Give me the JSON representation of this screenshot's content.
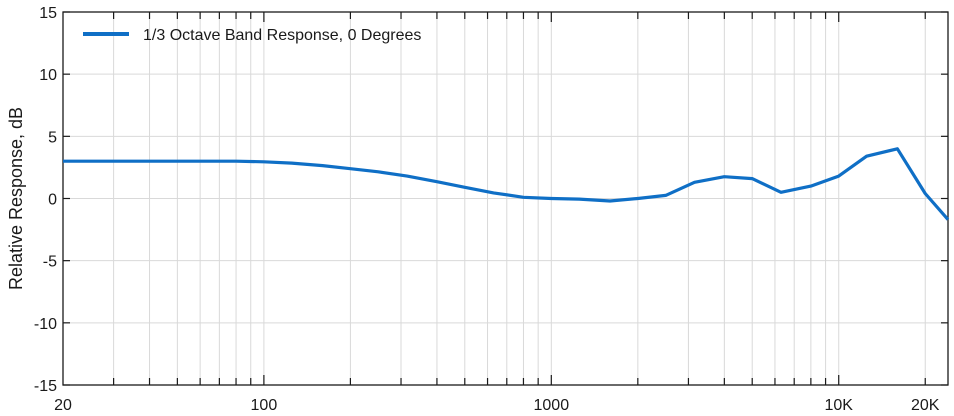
{
  "chart_data": {
    "type": "line",
    "title": "",
    "xlabel": "",
    "ylabel": "Relative Response, dB",
    "xscale": "log",
    "xlim": [
      20,
      24000
    ],
    "ylim": [
      -15,
      15
    ],
    "grid": true,
    "legend_position": "top-left",
    "x_ticks": [
      {
        "value": 20,
        "label": "20"
      },
      {
        "value": 100,
        "label": "100"
      },
      {
        "value": 1000,
        "label": "1000"
      },
      {
        "value": 10000,
        "label": "10K"
      },
      {
        "value": 20000,
        "label": "20K"
      }
    ],
    "y_ticks": [
      {
        "value": 15,
        "label": "15"
      },
      {
        "value": 10,
        "label": "10"
      },
      {
        "value": 5,
        "label": "5"
      },
      {
        "value": 0,
        "label": "0"
      },
      {
        "value": -5,
        "label": "-5"
      },
      {
        "value": -10,
        "label": "-10"
      },
      {
        "value": -15,
        "label": "-15"
      }
    ],
    "series": [
      {
        "name": "1/3 Octave Band Response, 0 Degrees",
        "color": "#0f6fc6",
        "x": [
          20,
          25,
          31.5,
          40,
          50,
          63,
          80,
          100,
          125,
          160,
          200,
          250,
          315,
          400,
          500,
          630,
          800,
          1000,
          1250,
          1600,
          2000,
          2500,
          3150,
          4000,
          5000,
          6300,
          8000,
          10000,
          12500,
          16000,
          20000,
          24000
        ],
        "y": [
          3.0,
          3.0,
          3.0,
          3.0,
          3.0,
          3.0,
          3.0,
          2.95,
          2.85,
          2.65,
          2.4,
          2.15,
          1.8,
          1.35,
          0.9,
          0.45,
          0.1,
          0.0,
          -0.05,
          -0.2,
          0.0,
          0.25,
          1.3,
          1.75,
          1.6,
          0.5,
          1.0,
          1.8,
          3.4,
          4.0,
          0.4,
          -1.7
        ]
      }
    ]
  }
}
